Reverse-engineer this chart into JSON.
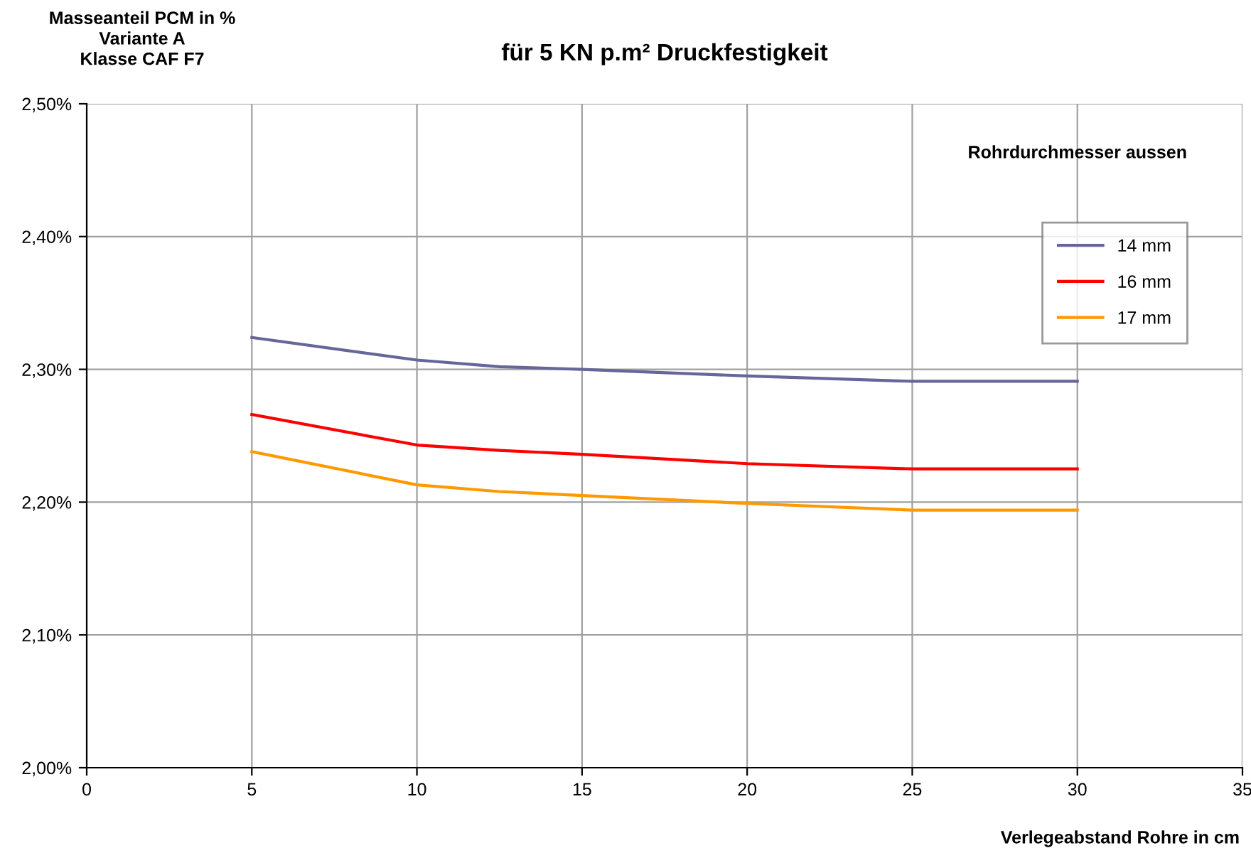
{
  "chart_data": {
    "type": "line",
    "title": "für 5 KN p.m² Druckfestigkeit",
    "ylabel": "Masseanteil PCM in %\nVariante A\nKlasse CAF F7",
    "xlabel": "Verlegeabstand Rohre in cm",
    "legend_title": "Rohrdurchmesser aussen",
    "x": [
      5,
      10,
      12.5,
      15,
      20,
      25,
      30
    ],
    "series": [
      {
        "name": "14 mm",
        "color": "#666699",
        "values": [
          2.324,
          2.307,
          2.302,
          2.3,
          2.295,
          2.291,
          2.291
        ]
      },
      {
        "name": "16 mm",
        "color": "#ff0000",
        "values": [
          2.266,
          2.243,
          2.239,
          2.236,
          2.229,
          2.225,
          2.225
        ]
      },
      {
        "name": "17 mm",
        "color": "#ff9900",
        "values": [
          2.238,
          2.213,
          2.208,
          2.205,
          2.199,
          2.194,
          2.194
        ]
      }
    ],
    "xlim": [
      0,
      35
    ],
    "xticks": [
      0,
      5,
      10,
      15,
      20,
      25,
      30,
      35
    ],
    "ylim": [
      2.0,
      2.5
    ],
    "yticks": [
      {
        "value": 2.0,
        "label": "2,00%"
      },
      {
        "value": 2.1,
        "label": "2,10%"
      },
      {
        "value": 2.2,
        "label": "2,20%"
      },
      {
        "value": 2.3,
        "label": "2,30%"
      },
      {
        "value": 2.4,
        "label": "2,40%"
      },
      {
        "value": 2.5,
        "label": "2,50%"
      }
    ],
    "grid": true,
    "legend": "right",
    "marker": "none",
    "line_style": "solid"
  }
}
